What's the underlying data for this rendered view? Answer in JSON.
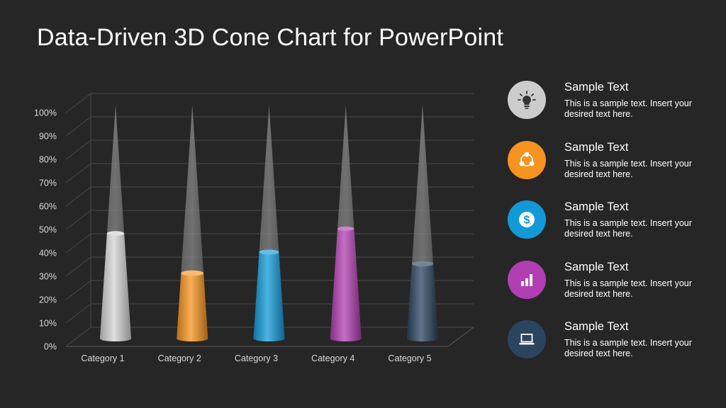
{
  "title": "Data-Driven 3D Cone Chart for PowerPoint",
  "chart_data": {
    "type": "bar",
    "title": "",
    "categories": [
      "Category 1",
      "Category 2",
      "Category 3",
      "Category 4",
      "Category 5"
    ],
    "values": [
      45,
      28,
      37,
      47,
      32
    ],
    "ylim": [
      0,
      100
    ],
    "y_ticks": [
      "0%",
      "10%",
      "20%",
      "30%",
      "40%",
      "50%",
      "60%",
      "70%",
      "80%",
      "90%",
      "100%"
    ],
    "colors": [
      "#d4d4d4",
      "#f7931e",
      "#129ad8",
      "#b13fb3",
      "#2b4460"
    ],
    "grid": true,
    "style": "3d-cone"
  },
  "legend": [
    {
      "heading": "Sample Text",
      "desc": "This is a sample text. Insert your desired text here.",
      "icon": "lightbulb-icon",
      "color": "#cccccc"
    },
    {
      "heading": "Sample Text",
      "desc": "This is a sample text. Insert your desired text here.",
      "icon": "network-icon",
      "color": "#f7931e"
    },
    {
      "heading": "Sample Text",
      "desc": "This is a sample text. Insert your desired text here.",
      "icon": "dollar-icon",
      "color": "#129ad8"
    },
    {
      "heading": "Sample Text",
      "desc": "This is a sample text. Insert your desired text here.",
      "icon": "bar-chart-icon",
      "color": "#b13fb3"
    },
    {
      "heading": "Sample Text",
      "desc": "This is a sample text. Insert your desired text here.",
      "icon": "laptop-icon",
      "color": "#2b4460"
    }
  ]
}
